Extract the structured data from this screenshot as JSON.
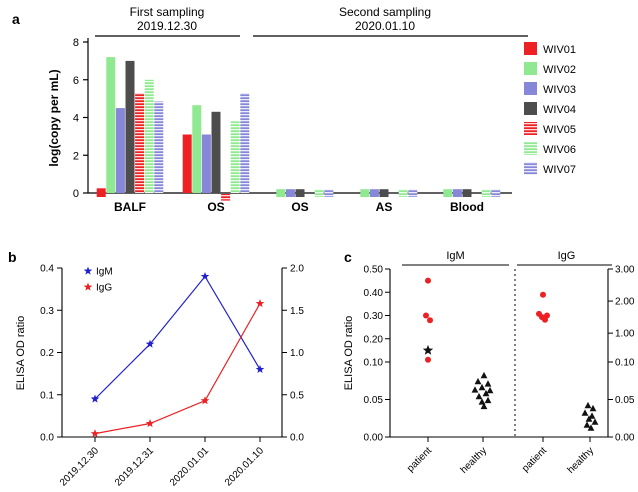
{
  "figure": {
    "panel_a_label": "a",
    "panel_b_label": "b",
    "panel_c_label": "c"
  },
  "chart_data": [
    {
      "id": "chart-a",
      "type": "bar",
      "title": "",
      "xlabel": "",
      "ylabel": "log(copy per mL)",
      "ylim": [
        -0.6,
        8
      ],
      "yticks": [
        0,
        2,
        4,
        6,
        8
      ],
      "legend_position": "right",
      "categories": [
        "BALF",
        "OS",
        "OS",
        "AS",
        "Blood"
      ],
      "sampling_headers": [
        {
          "title": "First sampling",
          "date": "2019.12.30",
          "span_categories": [
            "BALF",
            "OS"
          ]
        },
        {
          "title": "Second sampling",
          "date": "2020.01.10",
          "span_categories": [
            "OS",
            "AS",
            "Blood"
          ]
        }
      ],
      "series": [
        {
          "name": "WIV01",
          "color": "#ed2024",
          "hatch": false,
          "values": [
            0.25,
            3.1,
            0,
            0,
            0
          ]
        },
        {
          "name": "WIV02",
          "color": "#90e890",
          "hatch": false,
          "values": [
            7.2,
            4.65,
            0.2,
            0.2,
            0.2
          ]
        },
        {
          "name": "WIV03",
          "color": "#8787d9",
          "hatch": false,
          "values": [
            4.5,
            3.1,
            0.2,
            0.2,
            0.2
          ]
        },
        {
          "name": "WIV04",
          "color": "#4d4d4d",
          "hatch": false,
          "values": [
            7.0,
            4.3,
            0.2,
            0.2,
            0.2
          ]
        },
        {
          "name": "WIV05",
          "color": "#ed2024",
          "hatch": true,
          "values": [
            5.3,
            -0.35,
            0,
            0,
            0
          ]
        },
        {
          "name": "WIV06",
          "color": "#90e890",
          "hatch": true,
          "values": [
            6.0,
            3.8,
            0.2,
            0.2,
            0.2
          ]
        },
        {
          "name": "WIV07",
          "color": "#8787d9",
          "hatch": true,
          "values": [
            4.85,
            5.3,
            0.2,
            0.2,
            0.2
          ]
        }
      ]
    },
    {
      "id": "chart-b",
      "type": "line",
      "title": "",
      "xlabel": "",
      "ylabel": "ELISA OD ratio",
      "categories": [
        "2019.12.30",
        "2019.12.31",
        "2020.01.01",
        "2020.01.10"
      ],
      "left_axis": {
        "min": 0,
        "max": 0.4,
        "tick_labels": [
          "0.0",
          "0.1",
          "0.2",
          "0.3",
          "0.4"
        ]
      },
      "right_axis": {
        "min": 0,
        "max": 2.0,
        "tick_labels": [
          "0.0",
          "0.5",
          "1.0",
          "1.5",
          "2.0"
        ]
      },
      "series": [
        {
          "name": "IgM",
          "color": "#2121cd",
          "axis": "left",
          "marker": "star",
          "values": [
            0.09,
            0.22,
            0.38,
            0.16
          ]
        },
        {
          "name": "IgG",
          "color": "#ed2024",
          "axis": "right",
          "marker": "star",
          "values": [
            0.04,
            0.16,
            0.43,
            1.58
          ]
        }
      ]
    },
    {
      "id": "chart-c",
      "type": "scatter",
      "title": "",
      "xlabel": "",
      "ylabel": "ELISA OD ratio",
      "sections": [
        {
          "name": "IgM",
          "axis": "left",
          "tick_labels": [
            "0.50",
            "0.40",
            "0.30",
            "0.20",
            "0.10",
            "0.05",
            "0.00"
          ],
          "scale": {
            "lower_max": 0.1,
            "upper_max": 0.5
          },
          "groups": [
            {
              "name": "patient",
              "points": [
                {
                  "v": 0.45,
                  "dx": 0,
                  "marker": "circle",
                  "color": "#ed2024"
                },
                {
                  "v": 0.3,
                  "dx": -2,
                  "marker": "circle",
                  "color": "#ed2024"
                },
                {
                  "v": 0.28,
                  "dx": 2,
                  "marker": "circle",
                  "color": "#ed2024"
                },
                {
                  "v": 0.15,
                  "dx": 0,
                  "marker": "star",
                  "color": "#111111"
                },
                {
                  "v": 0.11,
                  "dx": 0,
                  "marker": "circle",
                  "color": "#ed2024"
                }
              ]
            },
            {
              "name": "healthy",
              "points": [
                {
                  "v": 0.082,
                  "dx": 1,
                  "marker": "triangle",
                  "color": "#111111"
                },
                {
                  "v": 0.074,
                  "dx": -5,
                  "marker": "triangle",
                  "color": "#111111"
                },
                {
                  "v": 0.071,
                  "dx": 5,
                  "marker": "triangle",
                  "color": "#111111"
                },
                {
                  "v": 0.066,
                  "dx": -1,
                  "marker": "triangle",
                  "color": "#111111"
                },
                {
                  "v": 0.063,
                  "dx": -8,
                  "marker": "triangle",
                  "color": "#111111"
                },
                {
                  "v": 0.062,
                  "dx": 7,
                  "marker": "triangle",
                  "color": "#111111"
                },
                {
                  "v": 0.058,
                  "dx": 3,
                  "marker": "triangle",
                  "color": "#111111"
                },
                {
                  "v": 0.054,
                  "dx": -4,
                  "marker": "triangle",
                  "color": "#111111"
                },
                {
                  "v": 0.049,
                  "dx": 5,
                  "marker": "triangle",
                  "color": "#111111"
                },
                {
                  "v": 0.047,
                  "dx": -1,
                  "marker": "triangle",
                  "color": "#111111"
                },
                {
                  "v": 0.041,
                  "dx": 1,
                  "marker": "triangle",
                  "color": "#111111"
                }
              ]
            }
          ]
        },
        {
          "name": "IgG",
          "axis": "right",
          "tick_labels": [
            "3.00",
            "2.00",
            "1.00",
            "0.10",
            "0.05",
            "0.00"
          ],
          "scale": {
            "lower_max": 0.1,
            "upper_max": 3.0
          },
          "groups": [
            {
              "name": "patient",
              "points": [
                {
                  "v": 2.2,
                  "dx": 0,
                  "marker": "circle",
                  "color": "#ed2024"
                },
                {
                  "v": 1.6,
                  "dx": -4,
                  "marker": "circle",
                  "color": "#ed2024"
                },
                {
                  "v": 1.55,
                  "dx": 4,
                  "marker": "circle",
                  "color": "#ed2024"
                },
                {
                  "v": 1.5,
                  "dx": -1,
                  "marker": "circle",
                  "color": "#ed2024"
                },
                {
                  "v": 1.42,
                  "dx": 2,
                  "marker": "circle",
                  "color": "#ed2024"
                }
              ]
            },
            {
              "name": "healthy",
              "points": [
                {
                  "v": 0.042,
                  "dx": -2,
                  "marker": "triangle",
                  "color": "#111111"
                },
                {
                  "v": 0.038,
                  "dx": 3,
                  "marker": "triangle",
                  "color": "#111111"
                },
                {
                  "v": 0.032,
                  "dx": -5,
                  "marker": "triangle",
                  "color": "#111111"
                },
                {
                  "v": 0.028,
                  "dx": 2,
                  "marker": "triangle",
                  "color": "#111111"
                },
                {
                  "v": 0.024,
                  "dx": -1,
                  "marker": "triangle",
                  "color": "#111111"
                },
                {
                  "v": 0.02,
                  "dx": 5,
                  "marker": "triangle",
                  "color": "#111111"
                },
                {
                  "v": 0.016,
                  "dx": -3,
                  "marker": "triangle",
                  "color": "#111111"
                },
                {
                  "v": 0.012,
                  "dx": 1,
                  "marker": "triangle",
                  "color": "#111111"
                }
              ]
            }
          ]
        }
      ]
    }
  ]
}
